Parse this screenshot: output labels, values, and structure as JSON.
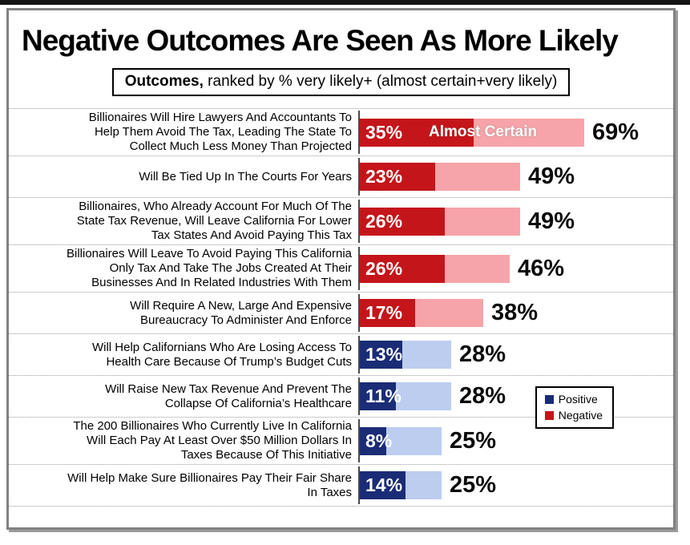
{
  "title": "Negative Outcomes Are Seen As More Likely",
  "subtitle": {
    "bold": "Outcomes,",
    "rest": " ranked by % very likely+ (almost certain+very likely)"
  },
  "legend": {
    "items": [
      {
        "label": "Positive",
        "sentiment": "positive"
      },
      {
        "label": "Negative",
        "sentiment": "negative"
      }
    ]
  },
  "colors": {
    "negative": {
      "dark": "#c4151a",
      "light": "#f6a4a9"
    },
    "positive": {
      "dark": "#1b2c76",
      "light": "#bccdf0"
    },
    "axis_line": "#4a4a4a",
    "separator_dotted": "#9a9a9a",
    "frame_border": "#828282",
    "top_strip": "#151515",
    "total_label_text": "#0a0a0a",
    "inner_label_text": "#ffffff"
  },
  "chart_data": {
    "type": "bar",
    "orientation": "horizontal",
    "title": "Negative Outcomes Are Seen As More Likely",
    "subtitle": "Outcomes, ranked by % very likely+ (almost certain+very likely)",
    "categories": [
      "Billionaires Will Hire Lawyers And Accountants To\nHelp Them Avoid The Tax, Leading The State To\nCollect Much Less Money Than Projected",
      "Will Be Tied Up In The Courts For Years",
      "Billionaires, Who Already Account For Much Of The\nState Tax Revenue, Will Leave California For Lower\nTax States And Avoid Paying This Tax",
      "Billionaires Will Leave To Avoid Paying This California\nOnly Tax And Take The Jobs Created At Their\nBusinesses And In Related Industries With Them",
      "Will Require A New, Large And Expensive\nBureaucracy To Administer And Enforce",
      "Will Help Californians Who Are Losing Access To\nHealth Care Because Of Trump’s Budget Cuts",
      "Will Raise New Tax Revenue And Prevent The\nCollapse Of California’s Healthcare",
      "The 200 Billionaires Who Currently Live In California\nWill Each Pay At Least Over $50 Million Dollars In\nTaxes Because Of This Initiative",
      "Will Help Make Sure Billionaires Pay Their Fair Share\nIn Taxes"
    ],
    "series": [
      {
        "name": "Almost Certain",
        "values": [
          35,
          23,
          26,
          26,
          17,
          13,
          11,
          8,
          14
        ]
      },
      {
        "name": "Very Likely (additional)",
        "values": [
          34,
          26,
          23,
          20,
          21,
          15,
          17,
          17,
          11
        ]
      }
    ],
    "totals": [
      69,
      49,
      49,
      46,
      38,
      28,
      28,
      25,
      25
    ],
    "row_sentiment": [
      "negative",
      "negative",
      "negative",
      "negative",
      "negative",
      "positive",
      "positive",
      "positive",
      "positive"
    ],
    "inner_bar_annotation": "Almost Certain",
    "annotation_row_index": 0,
    "value_suffix": "%",
    "xlim": [
      0,
      100
    ],
    "grid": false,
    "legend_entries": [
      "Positive",
      "Negative"
    ],
    "legend_position": "middle-right"
  }
}
